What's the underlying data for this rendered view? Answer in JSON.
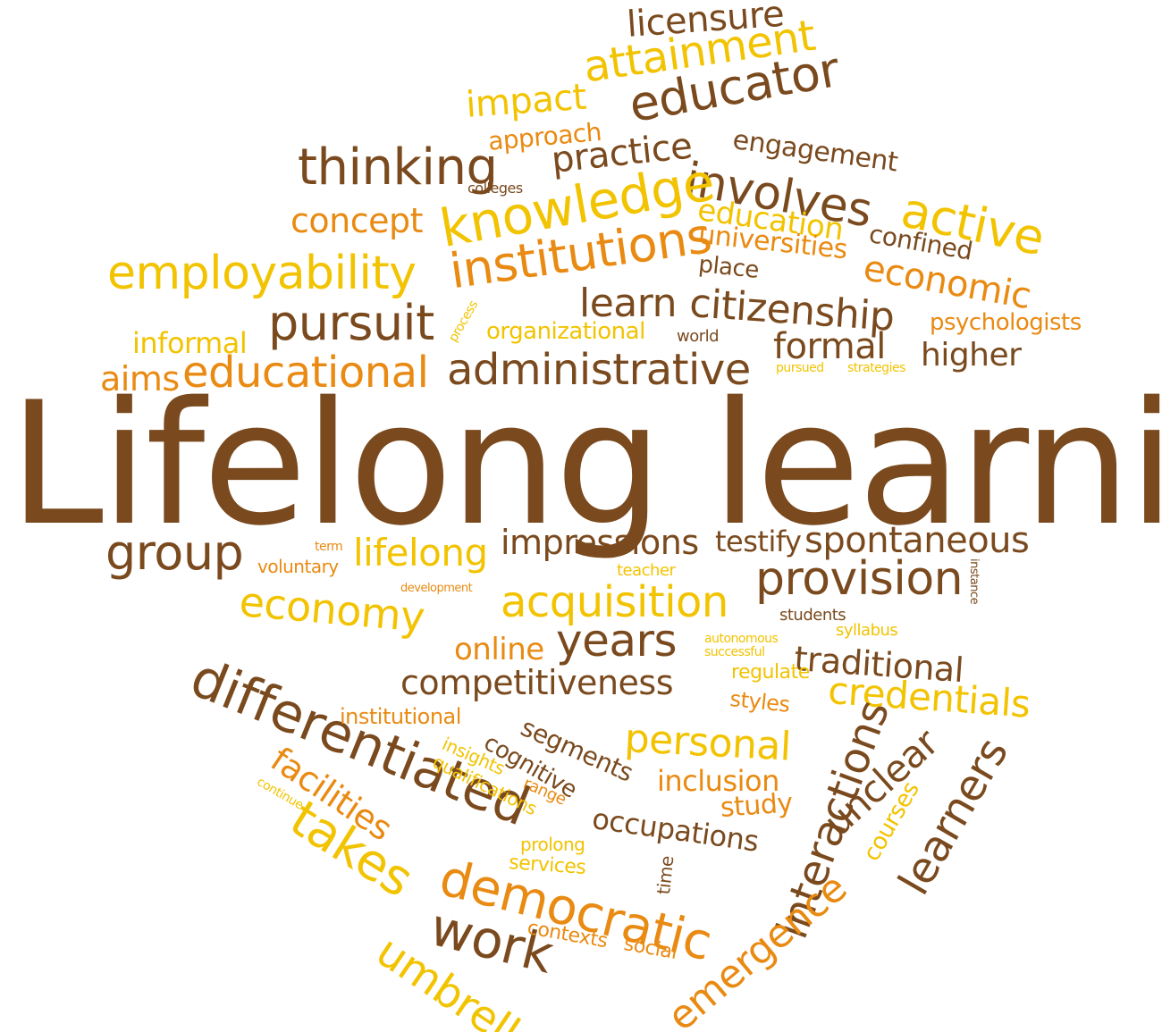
{
  "title": "Lifelong learning",
  "colors": {
    "brown": "#7a4a1e",
    "orange": "#e98a12",
    "yellow": "#f2c300"
  },
  "words": {
    "licensure": "licensure",
    "impact": "impact",
    "attainment": "attainment",
    "educator": "educator",
    "approach": "approach",
    "thinking": "thinking",
    "engagement": "engagement",
    "practice": "practice",
    "colleges": "colleges",
    "involves": "involves",
    "knowledge": "knowledge",
    "concept": "concept",
    "education": "education",
    "active": "active",
    "universities": "universities",
    "confined": "confined",
    "employability": "employability",
    "institutions": "institutions",
    "place": "place",
    "economic": "economic",
    "learn": "learn",
    "citizenship": "citizenship",
    "pursuit": "pursuit",
    "process": "process",
    "psychologists": "psychologists",
    "organizational": "organizational",
    "informal": "informal",
    "world": "world",
    "formal": "formal",
    "higher": "higher",
    "aims": "aims",
    "educational": "educational",
    "administrative": "administrative",
    "pursued": "pursued",
    "strategies": "strategies",
    "group": "group",
    "term": "term",
    "lifelong": "lifelong",
    "impressions": "impressions",
    "testify": "testify",
    "spontaneous": "spontaneous",
    "voluntary": "voluntary",
    "teacher": "teacher",
    "instance": "instance",
    "economy": "economy",
    "development": "development",
    "provision": "provision",
    "acquisition": "acquisition",
    "students": "students",
    "syllabus": "syllabus",
    "online": "online",
    "years": "years",
    "autonomous": "autonomous",
    "successful": "successful",
    "traditional": "traditional",
    "regulate": "regulate",
    "competitiveness": "competitiveness",
    "styles": "styles",
    "credentials": "credentials",
    "differentiated": "differentiated",
    "institutional": "institutional",
    "segments": "segments",
    "personal": "personal",
    "insights": "insights",
    "cognitive": "cognitive",
    "unclear": "unclear",
    "facilities": "facilities",
    "qualifications": "qualifications",
    "range": "range",
    "inclusion": "inclusion",
    "continue": "continue",
    "interactions": "interactions",
    "learners": "learners",
    "study": "study",
    "takes": "takes",
    "occupations": "occupations",
    "courses": "courses",
    "prolong": "prolong",
    "services": "services",
    "time": "time",
    "democratic": "democratic",
    "emergence": "emergence",
    "work": "work",
    "contexts": "contexts",
    "social": "social",
    "umbrella": "umbrella"
  }
}
